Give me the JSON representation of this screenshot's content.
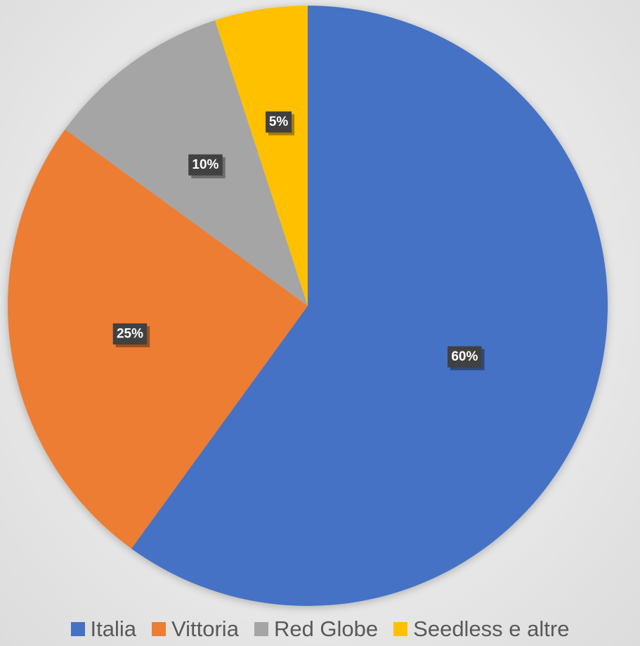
{
  "chart_data": {
    "type": "pie",
    "title": "",
    "categories": [
      "Italia",
      "Vittoria",
      "Red Globe",
      "Seedless e altre"
    ],
    "values": [
      60,
      25,
      10,
      5
    ],
    "data_labels": [
      "60%",
      "25%",
      "10%",
      "5%"
    ],
    "colors": [
      "#4472c4",
      "#ed7d31",
      "#a5a5a5",
      "#ffc000"
    ],
    "start_angle_deg": 0,
    "direction": "clockwise",
    "legend_position": "bottom"
  }
}
